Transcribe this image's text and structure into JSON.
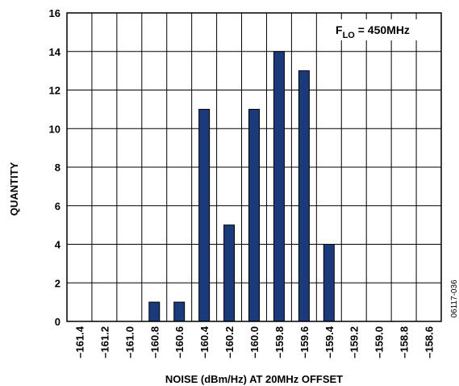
{
  "chart_data": {
    "type": "bar",
    "xlabel": "NOISE (dBm/Hz) AT 20MHz OFFSET",
    "ylabel": "QUANTITY",
    "categories": [
      "–161.4",
      "–161.2",
      "–161.0",
      "–160.8",
      "–160.6",
      "–160.4",
      "–160.2",
      "–160.0",
      "–159.8",
      "–159.6",
      "–159.4",
      "–159.2",
      "–159.0",
      "–158.8",
      "–158.6"
    ],
    "values": [
      0,
      0,
      0,
      1,
      1,
      11,
      5,
      11,
      14,
      13,
      4,
      0,
      0,
      0,
      0
    ],
    "ylim": [
      0,
      16
    ],
    "yticks": [
      0,
      2,
      4,
      6,
      8,
      10,
      12,
      14,
      16
    ],
    "grid": true,
    "bar_color": "#1b3a7a",
    "annotation": {
      "main": "F",
      "subscript": "LO",
      "rest": " = 450MHz"
    },
    "figure_id": "06117-036"
  }
}
